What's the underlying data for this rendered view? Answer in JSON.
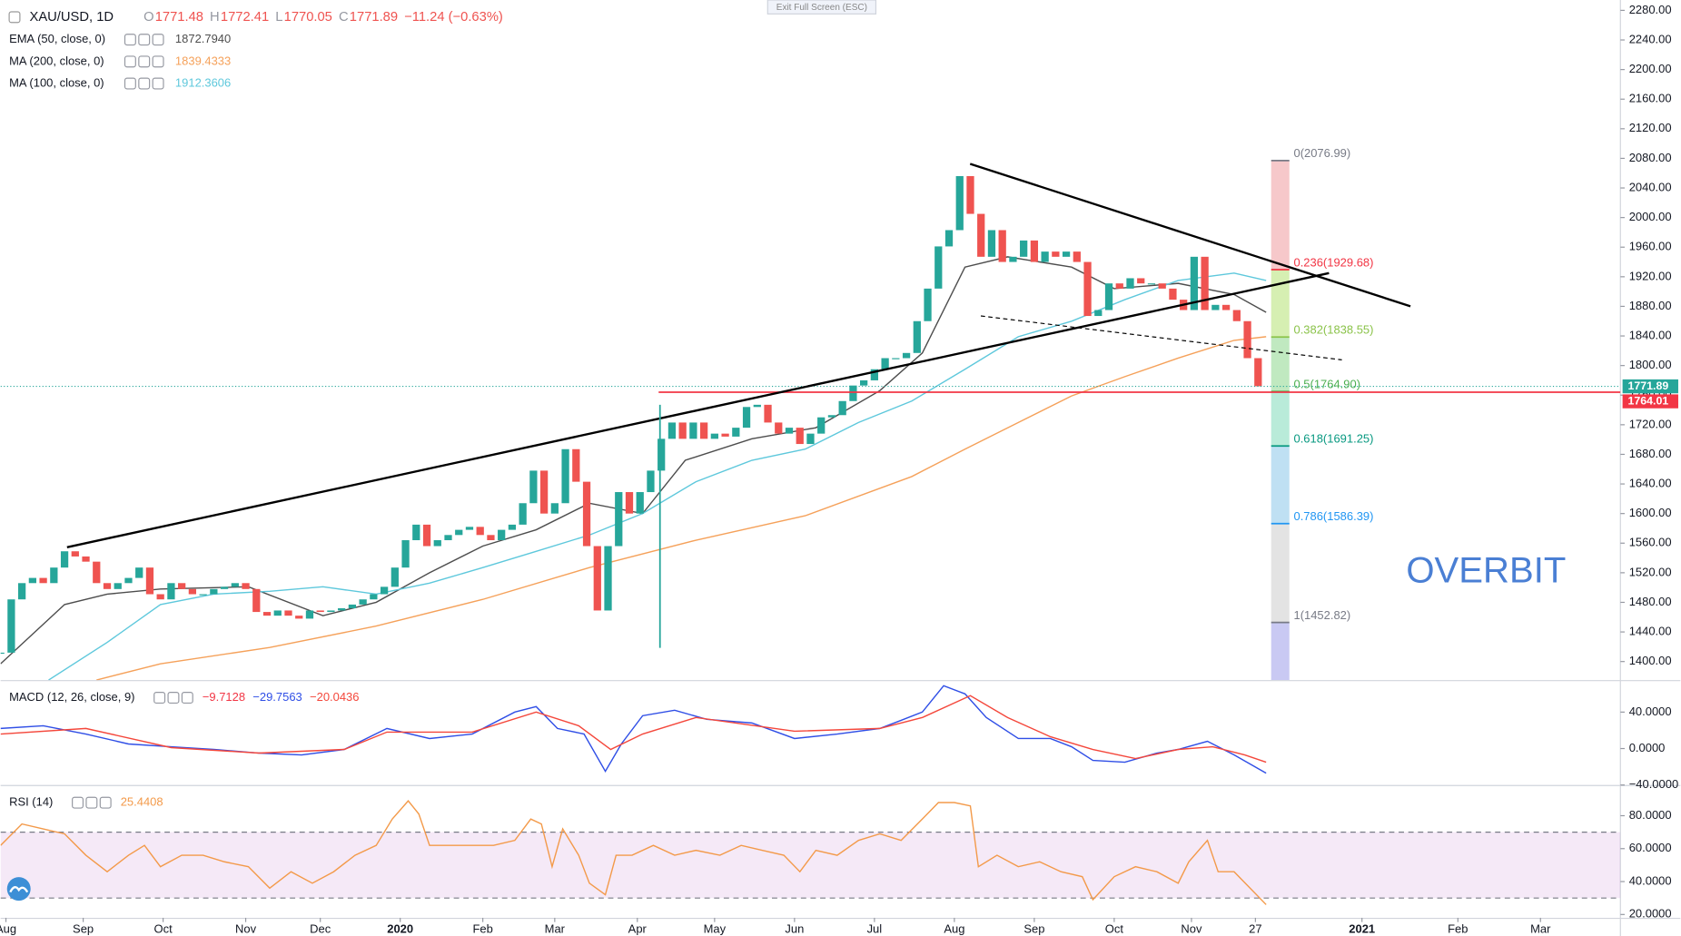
{
  "banner": "Exit Full Screen (ESC)",
  "watermark": "OVERBIT",
  "chart_data": [
    {
      "type": "candlestick",
      "title": "XAU/USD, 1D",
      "quote": [
        {
          "label": "O",
          "value": "1771.48"
        },
        {
          "label": "H",
          "value": "1772.41"
        },
        {
          "label": "L",
          "value": "1770.05"
        },
        {
          "label": "C",
          "value": "1771.89"
        }
      ],
      "change": "−11.24 (−0.63%)",
      "up_color": "#26a69a",
      "down_color": "#ef5350",
      "x": [
        0,
        4,
        8,
        12,
        16,
        20,
        24,
        28,
        32,
        36,
        40,
        44,
        48,
        52,
        56,
        60,
        64,
        68,
        72,
        76,
        80,
        84,
        88,
        92,
        96,
        100,
        104,
        108,
        112,
        116,
        120,
        124,
        128,
        132,
        136,
        140,
        144,
        148,
        152,
        156,
        160,
        164,
        168,
        172,
        176,
        180,
        184,
        188,
        192,
        196,
        200,
        204,
        208,
        212,
        216,
        220,
        224,
        228,
        232,
        236,
        240,
        244,
        248,
        252,
        256,
        260,
        264,
        268,
        272,
        276,
        280,
        284,
        288,
        292,
        296,
        300,
        304,
        308,
        312,
        316,
        320,
        324,
        328,
        332,
        336,
        340,
        344,
        348,
        352,
        356,
        360,
        364,
        368,
        372,
        376,
        380,
        384,
        388,
        392,
        396,
        400,
        404,
        408,
        412,
        416,
        420,
        424,
        428,
        432,
        436,
        440,
        444,
        448,
        452,
        456,
        460,
        464,
        468,
        472
      ],
      "values": [
        1412,
        1484,
        1506,
        1513,
        1506,
        1527,
        1549,
        1542,
        1535,
        1506,
        1498,
        1506,
        1513,
        1527,
        1491,
        1484,
        1506,
        1498,
        1491,
        1491,
        1498,
        1501,
        1506,
        1498,
        1467,
        1462,
        1469,
        1462,
        1458,
        1469,
        1467,
        1469,
        1472,
        1477,
        1484,
        1491,
        1501,
        1527,
        1564,
        1585,
        1556,
        1564,
        1571,
        1578,
        1582,
        1571,
        1564,
        1578,
        1585,
        1614,
        1658,
        1600,
        1614,
        1687,
        1643,
        1556,
        1469,
        1556,
        1629,
        1600,
        1629,
        1658,
        1701,
        1723,
        1701,
        1723,
        1701,
        1708,
        1704,
        1716,
        1744,
        1747,
        1723,
        1708,
        1716,
        1694,
        1708,
        1730,
        1733,
        1752,
        1773,
        1780,
        1795,
        1810,
        1810,
        1817,
        1860,
        1904,
        1961,
        1983,
        2056,
        2005,
        1947,
        1983,
        1940,
        1947,
        1969,
        1940,
        1954,
        1947,
        1954,
        1940,
        1867,
        1875,
        1911,
        1904,
        1918,
        1911,
        1911,
        1904,
        1889,
        1875,
        1947,
        1875,
        1882,
        1875,
        1860,
        1810,
        1772
      ],
      "series": [
        {
          "name": "EMA (50, close, 0)",
          "label": "1872.7940",
          "color": "#4d4d4d",
          "x": [
            0,
            24,
            40,
            60,
            93,
            121,
            141,
            161,
            181,
            201,
            221,
            241,
            257,
            282,
            306,
            330,
            346,
            362,
            378,
            402,
            418,
            442,
            463,
            475
          ],
          "values": [
            1397,
            1477,
            1491,
            1498,
            1501,
            1462,
            1480,
            1520,
            1556,
            1578,
            1614,
            1600,
            1672,
            1701,
            1716,
            1766,
            1817,
            1933,
            1947,
            1933,
            1904,
            1911,
            1896,
            1872
          ]
        },
        {
          "name": "MA (200, close, 0)",
          "label": "1839.4333",
          "color": "#f5a15a",
          "x": [
            36,
            60,
            101,
            141,
            181,
            221,
            261,
            302,
            342,
            362,
            382,
            402,
            422,
            442,
            463,
            475
          ],
          "values": [
            1375,
            1397,
            1419,
            1448,
            1484,
            1527,
            1564,
            1597,
            1650,
            1687,
            1723,
            1759,
            1785,
            1810,
            1834,
            1839
          ]
        },
        {
          "name": "MA (100, close, 0)",
          "label": "1912.3606",
          "color": "#5ec8dc",
          "x": [
            18,
            40,
            60,
            80,
            101,
            121,
            141,
            161,
            181,
            201,
            221,
            241,
            261,
            282,
            302,
            322,
            342,
            362,
            382,
            402,
            422,
            442,
            463,
            475
          ],
          "values": [
            1375,
            1426,
            1477,
            1491,
            1495,
            1501,
            1491,
            1506,
            1527,
            1549,
            1571,
            1600,
            1643,
            1672,
            1687,
            1723,
            1752,
            1795,
            1839,
            1860,
            1889,
            1915,
            1925,
            1915
          ]
        }
      ],
      "fib": [
        {
          "value": 2076.99,
          "label": "0(2076.99)",
          "color": "#787b86",
          "fill": "#f6c8ca"
        },
        {
          "value": 1929.68,
          "label": "0.236(1929.68)",
          "color": "#f23645",
          "fill": "#d6efb2"
        },
        {
          "value": 1838.55,
          "label": "0.382(1838.55)",
          "color": "#8bc34a",
          "fill": "#c0e9c0"
        },
        {
          "value": 1764.9,
          "label": "0.5(1764.90)",
          "color": "#4caf50",
          "fill": "#b9ebd9"
        },
        {
          "value": 1691.25,
          "label": "0.618(1691.25)",
          "color": "#089981",
          "fill": "#bfe0f3"
        },
        {
          "value": 1586.39,
          "label": "0.786(1586.39)",
          "color": "#2196f3",
          "fill": "#e3e3e3"
        },
        {
          "value": 1452.82,
          "label": "1(1452.82)",
          "color": "#787b86",
          "fill": "#c9c9f3"
        }
      ],
      "hlines": [
        {
          "value": 1771.89,
          "label": "1771.89",
          "color": "#26a69a",
          "dash": true
        },
        {
          "value": 1764.01,
          "label": "1764.01",
          "color": "#f23645",
          "x": 247
        }
      ],
      "xlim": [
        0,
        608
      ],
      "ylim": [
        1375,
        2294
      ],
      "yticks": [
        {
          "value": 1400,
          "label": "1400.00"
        },
        {
          "value": 1440,
          "label": "1440.00"
        },
        {
          "value": 1480,
          "label": "1480.00"
        },
        {
          "value": 1520,
          "label": "1520.00"
        },
        {
          "value": 1560,
          "label": "1560.00"
        },
        {
          "value": 1600,
          "label": "1600.00"
        },
        {
          "value": 1640,
          "label": "1640.00"
        },
        {
          "value": 1680,
          "label": "1680.00"
        },
        {
          "value": 1720,
          "label": "1720.00"
        },
        {
          "value": 1760,
          "label": "1760.00"
        },
        {
          "value": 1800,
          "label": "1800.00"
        },
        {
          "value": 1840,
          "label": "1840.00"
        },
        {
          "value": 1880,
          "label": "1880.00"
        },
        {
          "value": 1920,
          "label": "1920.00"
        },
        {
          "value": 1960,
          "label": "1960.00"
        },
        {
          "value": 2000,
          "label": "2000.00"
        },
        {
          "value": 2040,
          "label": "2040.00"
        },
        {
          "value": 2080,
          "label": "2080.00"
        },
        {
          "value": 2120,
          "label": "2120.00"
        },
        {
          "value": 2160,
          "label": "2160.00"
        },
        {
          "value": 2200,
          "label": "2200.00"
        },
        {
          "value": 2240,
          "label": "2240.00"
        },
        {
          "value": 2280,
          "label": "2280.00"
        }
      ]
    },
    {
      "type": "line",
      "title": "MACD (12, 26, close, 9)",
      "histogram_label": "−9.7128",
      "histogram_color": "#f23645",
      "series": [
        {
          "label": "−29.7563",
          "color": "#2f4ee6",
          "x": [
            0,
            16,
            32,
            48,
            64,
            80,
            97,
            113,
            129,
            145,
            161,
            177,
            193,
            201,
            209,
            219,
            227,
            233,
            241,
            253,
            265,
            282,
            298,
            314,
            330,
            338,
            346,
            354,
            362,
            370,
            382,
            394,
            402,
            410,
            422,
            434,
            442,
            453,
            463,
            475
          ],
          "values": [
            22,
            25,
            16,
            5,
            2,
            -1,
            -5,
            -7,
            -1,
            22,
            11,
            16,
            40,
            46,
            22,
            16,
            -25,
            5,
            36,
            42,
            32,
            28,
            11,
            16,
            22,
            31,
            40,
            69,
            60,
            34,
            11,
            11,
            2,
            -13,
            -15,
            -5,
            -1,
            8,
            -7,
            -27
          ]
        },
        {
          "label": "−20.0436",
          "color": "#f4473b",
          "x": [
            0,
            32,
            64,
            97,
            129,
            145,
            177,
            201,
            217,
            229,
            241,
            261,
            298,
            330,
            346,
            364,
            378,
            394,
            410,
            426,
            442,
            455,
            467,
            475
          ],
          "values": [
            16,
            22,
            1,
            -5,
            -1,
            18,
            18,
            40,
            25,
            -1,
            16,
            34,
            19,
            22,
            34,
            58,
            34,
            13,
            -1,
            -11,
            -1,
            2,
            -7,
            -15
          ]
        }
      ],
      "xlim": [
        0,
        608
      ],
      "ylim": [
        -40,
        74
      ],
      "yticks": [
        {
          "value": -40,
          "label": "−40.0000"
        },
        {
          "value": 0,
          "label": "0.0000"
        },
        {
          "value": 40,
          "label": "40.0000"
        }
      ]
    },
    {
      "type": "line",
      "title": "RSI (14)",
      "band": [
        30,
        70
      ],
      "band_color": "#9c27b0",
      "series": [
        {
          "label": "25.4408",
          "color": "#f39a4a",
          "x": [
            0,
            8,
            16,
            24,
            32,
            40,
            48,
            54,
            60,
            68,
            76,
            84,
            93,
            101,
            109,
            117,
            125,
            133,
            141,
            147,
            153,
            157,
            161,
            169,
            177,
            185,
            193,
            199,
            203,
            207,
            211,
            217,
            221,
            227,
            231,
            237,
            245,
            253,
            261,
            270,
            278,
            286,
            294,
            300,
            306,
            314,
            322,
            330,
            338,
            346,
            352,
            358,
            364,
            367,
            374,
            382,
            390,
            398,
            406,
            410,
            418,
            426,
            434,
            442,
            446,
            453,
            457,
            463,
            469,
            475
          ],
          "values": [
            62,
            75,
            72,
            69,
            56,
            46,
            56,
            62,
            49,
            56,
            56,
            52,
            49,
            36,
            46,
            39,
            46,
            56,
            62,
            78,
            89,
            81,
            62,
            62,
            62,
            62,
            65,
            78,
            75,
            49,
            72,
            56,
            39,
            32,
            56,
            56,
            62,
            56,
            59,
            56,
            62,
            59,
            56,
            46,
            59,
            56,
            65,
            69,
            65,
            78,
            88,
            88,
            86,
            49,
            56,
            49,
            52,
            46,
            43,
            29,
            43,
            49,
            46,
            39,
            52,
            65,
            46,
            46,
            36,
            26
          ]
        }
      ],
      "xlim": [
        0,
        608
      ],
      "ylim": [
        18,
        98
      ],
      "yticks": [
        {
          "value": 20,
          "label": "20.0000"
        },
        {
          "value": 40,
          "label": "40.0000"
        },
        {
          "value": 60,
          "label": "60.0000"
        },
        {
          "value": 80,
          "label": "80.0000"
        }
      ],
      "xticks": [
        {
          "value": 2,
          "label": "Aug"
        },
        {
          "value": 31,
          "label": "Sep"
        },
        {
          "value": 61,
          "label": "Oct"
        },
        {
          "value": 92,
          "label": "Nov"
        },
        {
          "value": 120,
          "label": "Dec"
        },
        {
          "value": 150,
          "label": "2020"
        },
        {
          "value": 181,
          "label": "Feb"
        },
        {
          "value": 208,
          "label": "Mar"
        },
        {
          "value": 239,
          "label": "Apr"
        },
        {
          "value": 268,
          "label": "May"
        },
        {
          "value": 298,
          "label": "Jun"
        },
        {
          "value": 328,
          "label": "Jul"
        },
        {
          "value": 358,
          "label": "Aug"
        },
        {
          "value": 388,
          "label": "Sep"
        },
        {
          "value": 418,
          "label": "Oct"
        },
        {
          "value": 447,
          "label": "Nov"
        },
        {
          "value": 471,
          "label": "27"
        },
        {
          "value": 511,
          "label": "2021"
        },
        {
          "value": 547,
          "label": "Feb"
        },
        {
          "value": 578,
          "label": "Mar"
        }
      ]
    }
  ]
}
